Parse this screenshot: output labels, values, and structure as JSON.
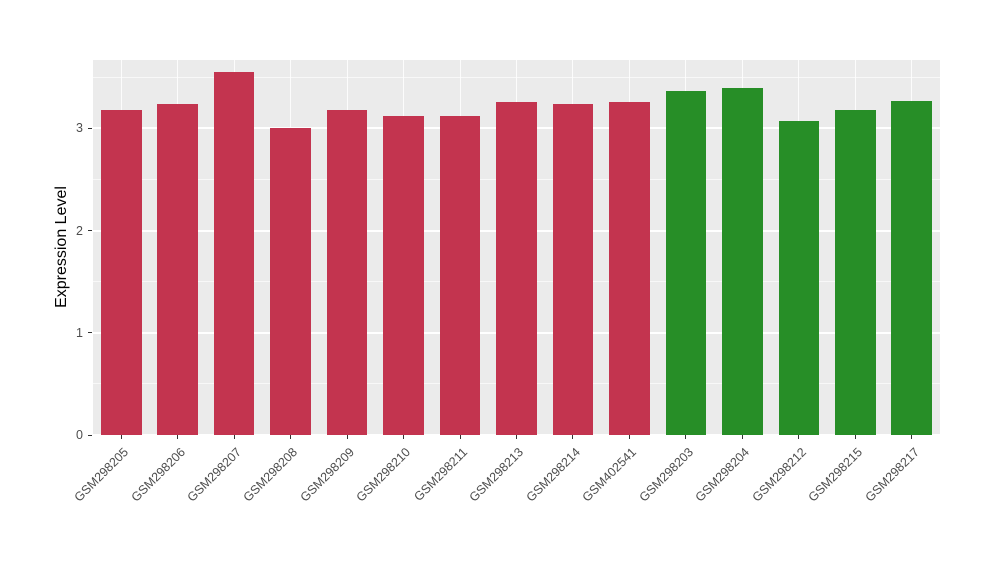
{
  "chart_data": {
    "type": "bar",
    "title": "",
    "xlabel": "",
    "ylabel": "Expression Level",
    "categories": [
      "GSM298205",
      "GSM298206",
      "GSM298207",
      "GSM298208",
      "GSM298209",
      "GSM298210",
      "GSM298211",
      "GSM298213",
      "GSM298214",
      "GSM402541",
      "GSM298203",
      "GSM298204",
      "GSM298212",
      "GSM298215",
      "GSM298217"
    ],
    "values": [
      3.18,
      3.24,
      3.55,
      3.0,
      3.18,
      3.12,
      3.12,
      3.26,
      3.24,
      3.26,
      3.37,
      3.4,
      3.07,
      3.18,
      3.27
    ],
    "bar_colors": [
      "#C3344F",
      "#C3344F",
      "#C3344F",
      "#C3344F",
      "#C3344F",
      "#C3344F",
      "#C3344F",
      "#C3344F",
      "#C3344F",
      "#C3344F",
      "#278E27",
      "#278E27",
      "#278E27",
      "#278E27",
      "#278E27"
    ],
    "group_colors": {
      "red_group": "#C3344F",
      "green_group": "#278E27"
    },
    "yticks": [
      0,
      1,
      2,
      3
    ],
    "ylim": [
      0,
      3.67
    ],
    "grid": "on",
    "legend": "none",
    "panel_background": "#EBEBEB",
    "grid_color": "#FFFFFF",
    "tick_label_color": "#4D4D4D",
    "axis_title_color": "#000000"
  }
}
